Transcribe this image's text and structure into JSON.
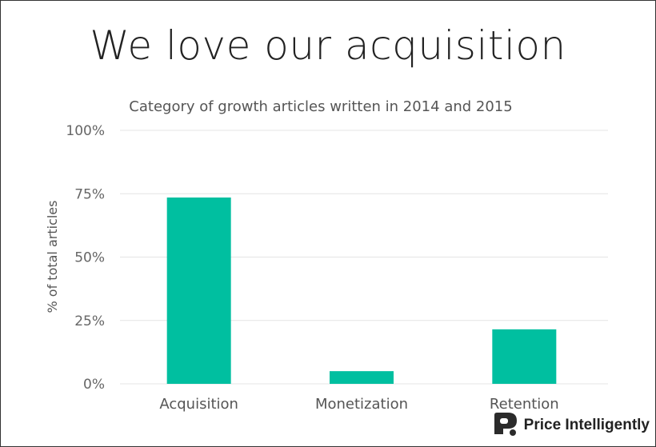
{
  "headline": "We love our acquisition",
  "logo": {
    "text": "Price Intelligently",
    "icon": "price-intelligently-logo-icon"
  },
  "colors": {
    "bar": "#00bfa0",
    "grid": "#e4e4e4",
    "text": "#555555"
  },
  "chart_data": {
    "type": "bar",
    "title": "Category of growth articles written in 2014 and 2015",
    "xlabel": "",
    "ylabel": "% of total articles",
    "categories": [
      "Acquisition",
      "Monetization",
      "Retention"
    ],
    "values": [
      73.5,
      5,
      21.5
    ],
    "ylim": [
      0,
      100
    ],
    "yticks": [
      0,
      25,
      50,
      75,
      100
    ],
    "ytick_labels": [
      "0%",
      "25%",
      "50%",
      "75%",
      "100%"
    ],
    "grid": true,
    "legend": "none"
  }
}
